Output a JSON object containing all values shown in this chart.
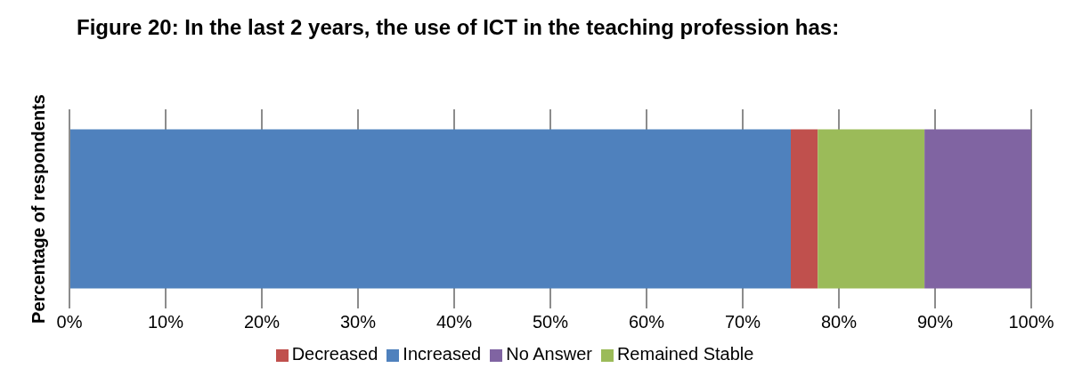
{
  "chart_data": {
    "type": "bar",
    "orientation": "horizontal",
    "stacked": true,
    "title": "Figure 20: In the last 2 years, the use of ICT in the teaching profession has:",
    "ylabel": "Percentage of respondents",
    "categories": [
      null
    ],
    "series": [
      {
        "name": "Increased",
        "color": "#4f81bd",
        "values": [
          75
        ]
      },
      {
        "name": "Decreased",
        "color": "#c0504d",
        "values": [
          2.8
        ]
      },
      {
        "name": "Remained Stable",
        "color": "#9bbb59",
        "values": [
          11.1
        ]
      },
      {
        "name": "No Answer",
        "color": "#8064a2",
        "values": [
          11.1
        ]
      }
    ],
    "xlim": [
      0,
      100
    ],
    "xticks": [
      {
        "value": 0,
        "label": "0%"
      },
      {
        "value": 10,
        "label": "10%"
      },
      {
        "value": 20,
        "label": "20%"
      },
      {
        "value": 30,
        "label": "30%"
      },
      {
        "value": 40,
        "label": "40%"
      },
      {
        "value": 50,
        "label": "50%"
      },
      {
        "value": 60,
        "label": "60%"
      },
      {
        "value": 70,
        "label": "70%"
      },
      {
        "value": 80,
        "label": "80%"
      },
      {
        "value": 90,
        "label": "90%"
      },
      {
        "value": 100,
        "label": "100%"
      }
    ],
    "grid": "x",
    "legend": "bottom"
  }
}
